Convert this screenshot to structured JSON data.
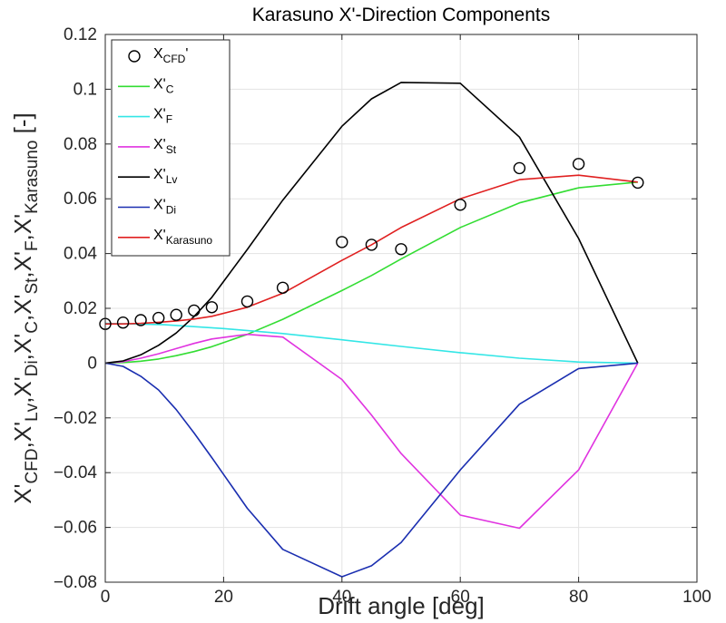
{
  "chart_data": {
    "type": "line",
    "title": "Karasuno X'-Direction Components",
    "xlabel": "Drift angle [deg]",
    "ylabel": {
      "prefix": "X'",
      "parts": [
        [
          "CFD",
          ",X'"
        ],
        [
          "Lv",
          ",X'"
        ],
        [
          "Di",
          ",X'"
        ],
        [
          "C",
          ",X'"
        ],
        [
          "St",
          ",X'"
        ],
        [
          "F",
          ",X'"
        ],
        [
          "Karasuno",
          " [-]"
        ]
      ]
    },
    "xlim": [
      0,
      100
    ],
    "ylim": [
      -0.08,
      0.12
    ],
    "xticks": [
      0,
      20,
      40,
      60,
      80,
      100
    ],
    "yticks": [
      -0.08,
      -0.06,
      -0.04,
      -0.02,
      0,
      0.02,
      0.04,
      0.06,
      0.08,
      0.1,
      0.12
    ],
    "grid": true,
    "legend_position": "top-left",
    "series": [
      {
        "name": "X_CFD'",
        "label_main": "X",
        "label_sub": "CFD",
        "label_suffix": "'",
        "style": "marker",
        "color": "#000000",
        "x": [
          0,
          3,
          6,
          9,
          12,
          15,
          18,
          24,
          30,
          40,
          45,
          50,
          60,
          70,
          80,
          90
        ],
        "y": [
          0.0143,
          0.0148,
          0.0157,
          0.0165,
          0.0176,
          0.0192,
          0.0204,
          0.0225,
          0.0275,
          0.0442,
          0.0432,
          0.0416,
          0.0578,
          0.0712,
          0.0727,
          0.0659
        ]
      },
      {
        "name": "X'_C",
        "label_main": "X'",
        "label_sub": "C",
        "label_suffix": "",
        "style": "line",
        "color": "#33dd33",
        "x": [
          0,
          3,
          6,
          9,
          12,
          15,
          18,
          24,
          30,
          40,
          45,
          50,
          60,
          70,
          80,
          90
        ],
        "y": [
          0,
          0.0002,
          0.0007,
          0.0015,
          0.0027,
          0.0042,
          0.006,
          0.0105,
          0.016,
          0.0265,
          0.032,
          0.038,
          0.0495,
          0.0585,
          0.064,
          0.0661
        ]
      },
      {
        "name": "X'_F",
        "label_main": "X'",
        "label_sub": "F",
        "label_suffix": "",
        "style": "line",
        "color": "#33e6e6",
        "x": [
          0,
          10,
          20,
          30,
          40,
          50,
          60,
          70,
          80,
          90
        ],
        "y": [
          0.0145,
          0.014,
          0.0126,
          0.0108,
          0.0085,
          0.0061,
          0.0038,
          0.0018,
          0.0004,
          0
        ]
      },
      {
        "name": "X'_St",
        "label_main": "X'",
        "label_sub": "St",
        "label_suffix": "",
        "style": "line",
        "color": "#e033e0",
        "x": [
          0,
          3,
          6,
          9,
          12,
          15,
          18,
          24,
          30,
          40,
          45,
          50,
          60,
          70,
          80,
          90
        ],
        "y": [
          0,
          0.0005,
          0.0018,
          0.0034,
          0.0053,
          0.0072,
          0.0088,
          0.0105,
          0.0095,
          -0.006,
          -0.019,
          -0.033,
          -0.0555,
          -0.0603,
          -0.039,
          0
        ]
      },
      {
        "name": "X'_Lv",
        "label_main": "X'",
        "label_sub": "Lv",
        "label_suffix": "",
        "style": "line",
        "color": "#000000",
        "x": [
          0,
          3,
          6,
          9,
          12,
          15,
          18,
          24,
          30,
          40,
          45,
          50,
          60,
          70,
          80,
          90
        ],
        "y": [
          0,
          0.0008,
          0.003,
          0.0065,
          0.011,
          0.017,
          0.024,
          0.0415,
          0.0595,
          0.0865,
          0.0965,
          0.1025,
          0.1022,
          0.0825,
          0.0455,
          0
        ]
      },
      {
        "name": "X'_Di",
        "label_main": "X'",
        "label_sub": "Di",
        "label_suffix": "",
        "style": "line",
        "color": "#1a2eb0",
        "x": [
          0,
          3,
          6,
          9,
          12,
          15,
          18,
          24,
          30,
          40,
          45,
          50,
          60,
          70,
          80,
          90
        ],
        "y": [
          0,
          -0.0012,
          -0.0048,
          -0.0098,
          -0.017,
          -0.0255,
          -0.0345,
          -0.053,
          -0.068,
          -0.078,
          -0.074,
          -0.0655,
          -0.039,
          -0.015,
          -0.002,
          0
        ]
      },
      {
        "name": "X'_Karasuno",
        "label_main": "X'",
        "label_sub": "Karasuno",
        "label_suffix": "",
        "style": "line",
        "color": "#e02020",
        "x": [
          0,
          3,
          6,
          9,
          12,
          15,
          18,
          24,
          30,
          40,
          45,
          50,
          60,
          70,
          80,
          90
        ],
        "y": [
          0.0143,
          0.0143,
          0.0145,
          0.0149,
          0.0154,
          0.0161,
          0.0171,
          0.0204,
          0.0255,
          0.0375,
          0.0432,
          0.0495,
          0.06,
          0.067,
          0.0686,
          0.0661
        ]
      }
    ]
  }
}
